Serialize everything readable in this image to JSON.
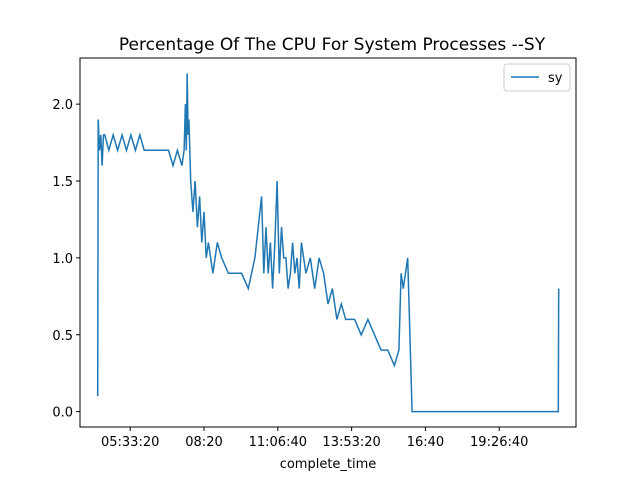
{
  "chart_data": {
    "type": "line",
    "title": "Percentage Of The CPU For System Processes --SY",
    "xlabel": "complete_time",
    "ylabel": "",
    "xlim": [
      "03:40",
      "22:20"
    ],
    "ylim": [
      -0.1,
      2.3
    ],
    "x_ticks": [
      "05:33:20",
      "08:20",
      "11:06:40",
      "13:53:20",
      "16:40",
      "19:26:40"
    ],
    "y_ticks": [
      "0.0",
      "0.5",
      "1.0",
      "1.5",
      "2.0"
    ],
    "legend": {
      "position": "top-right",
      "entries": [
        "sy"
      ]
    },
    "grid": false,
    "series": [
      {
        "name": "sy",
        "color": "#1f77b4",
        "x": [
          "04:20",
          "04:21",
          "04:24",
          "04:27",
          "04:30",
          "04:33",
          "04:36",
          "04:45",
          "04:55",
          "05:05",
          "05:15",
          "05:25",
          "05:35",
          "05:45",
          "05:55",
          "06:05",
          "06:20",
          "06:40",
          "07:00",
          "07:10",
          "07:20",
          "07:30",
          "07:35",
          "07:38",
          "07:40",
          "07:42",
          "07:44",
          "07:46",
          "07:50",
          "07:55",
          "08:00",
          "08:05",
          "08:10",
          "08:15",
          "08:20",
          "08:25",
          "08:30",
          "08:40",
          "08:50",
          "09:00",
          "09:15",
          "09:30",
          "09:45",
          "10:00",
          "10:15",
          "10:30",
          "10:35",
          "10:40",
          "10:45",
          "10:50",
          "10:55",
          "11:00",
          "11:05",
          "11:10",
          "11:15",
          "11:20",
          "11:25",
          "11:30",
          "11:35",
          "11:40",
          "11:45",
          "11:50",
          "11:55",
          "12:00",
          "12:10",
          "12:20",
          "12:30",
          "12:40",
          "12:50",
          "13:00",
          "13:10",
          "13:20",
          "13:30",
          "13:40",
          "13:50",
          "14:00",
          "14:15",
          "14:30",
          "14:45",
          "15:00",
          "15:15",
          "15:30",
          "15:40",
          "15:45",
          "15:50",
          "16:00",
          "16:10",
          "16:20",
          "16:30",
          "16:40",
          "16:45",
          "16:50",
          "16:55",
          "17:00",
          "17:30",
          "18:00",
          "19:00",
          "20:00",
          "21:00",
          "21:40",
          "21:41"
        ],
        "values": [
          0.1,
          1.9,
          1.7,
          1.8,
          1.6,
          1.8,
          1.8,
          1.7,
          1.8,
          1.7,
          1.8,
          1.7,
          1.8,
          1.7,
          1.8,
          1.7,
          1.7,
          1.7,
          1.7,
          1.6,
          1.7,
          1.6,
          1.7,
          2.0,
          1.7,
          2.2,
          1.8,
          1.9,
          1.5,
          1.3,
          1.5,
          1.2,
          1.4,
          1.1,
          1.3,
          1.0,
          1.1,
          0.9,
          1.1,
          1.0,
          0.9,
          0.9,
          0.9,
          0.8,
          1.0,
          1.4,
          0.9,
          1.2,
          0.9,
          1.1,
          0.8,
          1.1,
          1.5,
          0.9,
          1.2,
          1.0,
          1.0,
          0.8,
          0.9,
          1.1,
          0.9,
          1.0,
          0.8,
          1.1,
          0.9,
          1.0,
          0.8,
          1.0,
          0.9,
          0.7,
          0.8,
          0.6,
          0.7,
          0.6,
          0.6,
          0.6,
          0.5,
          0.6,
          0.5,
          0.4,
          0.4,
          0.3,
          0.4,
          0.9,
          0.8,
          1.0,
          0.0,
          0.0,
          0.0,
          0.0,
          0.0,
          0.0,
          0.0,
          0.0,
          0.0,
          0.0,
          0.0,
          0.0,
          0.0,
          0.0,
          0.8
        ]
      }
    ]
  }
}
